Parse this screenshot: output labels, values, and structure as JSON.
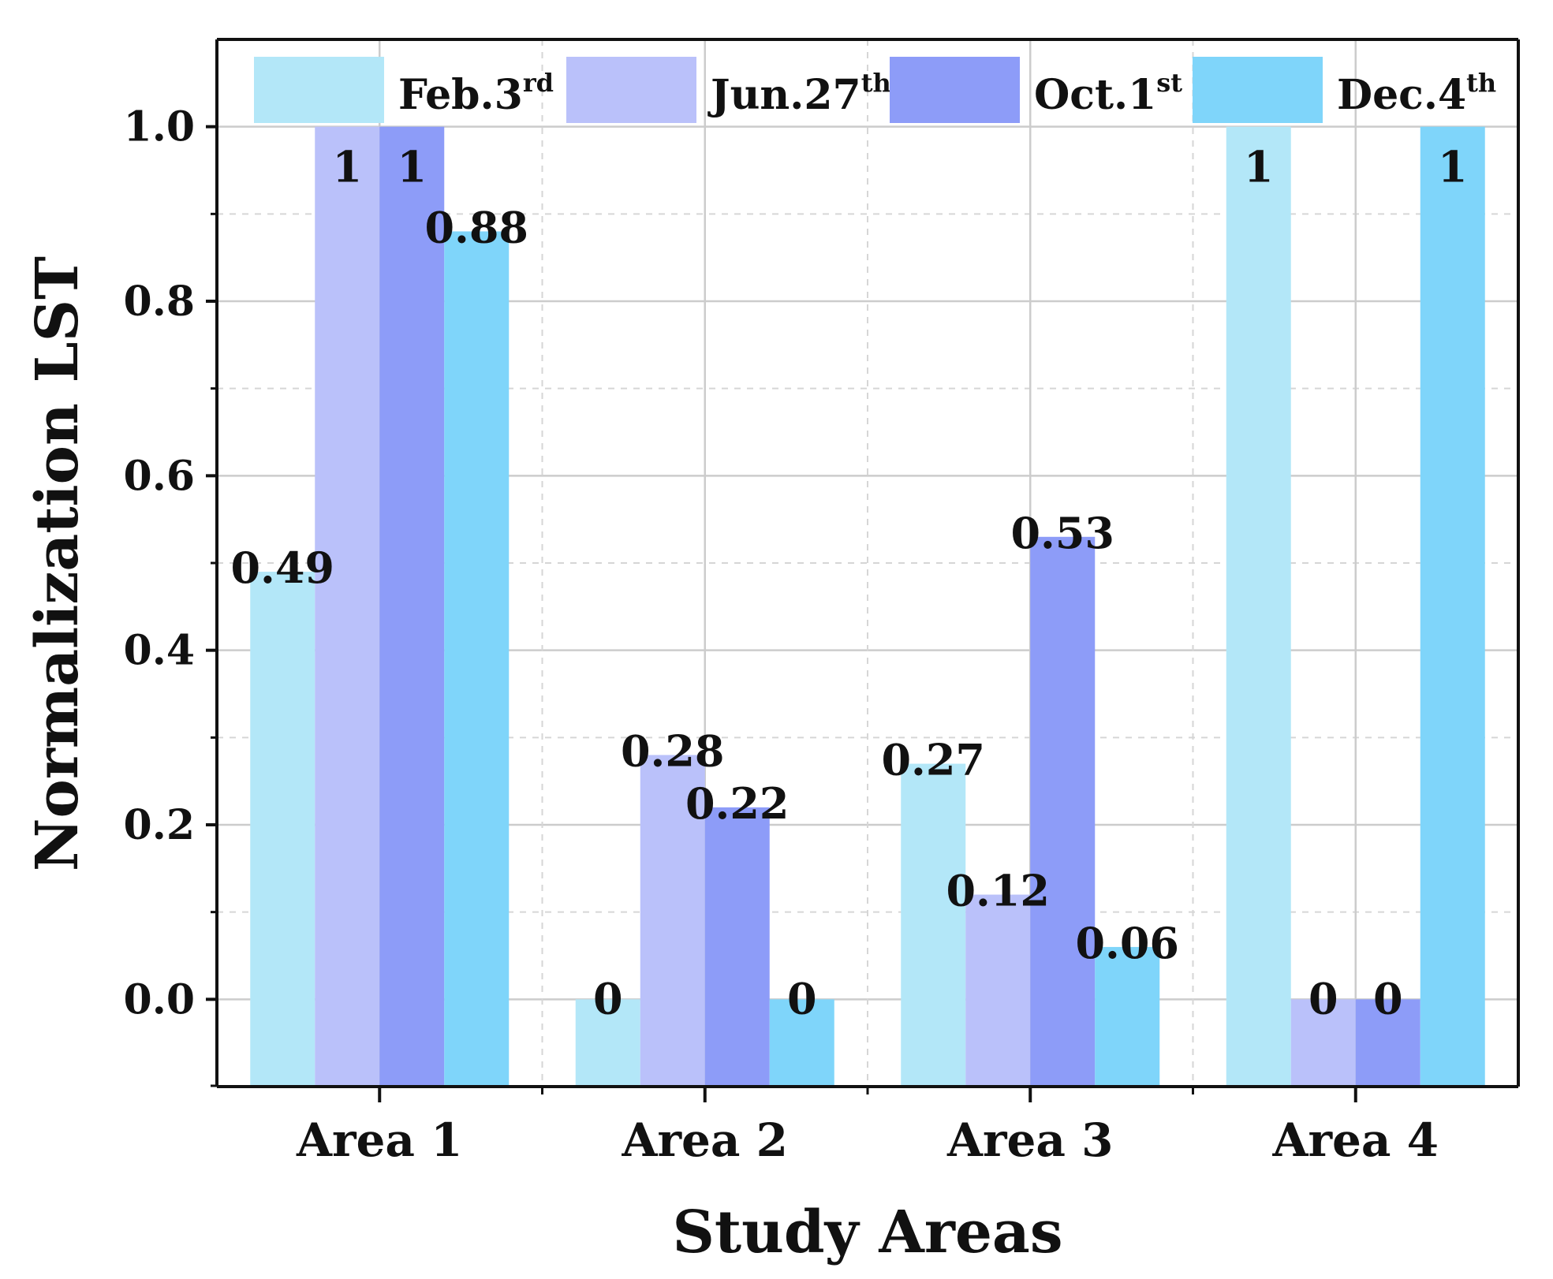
{
  "chart_data": {
    "type": "bar",
    "title": "",
    "xlabel": "Study Areas",
    "ylabel": "Normalization LST",
    "ylim": [
      -0.1,
      1.1
    ],
    "yticks": [
      "0.0",
      "0.2",
      "0.4",
      "0.6",
      "0.8",
      "1.0"
    ],
    "grid": true,
    "legend_position": "top",
    "categories": [
      "Area 1",
      "Area 2",
      "Area 3",
      "Area 4"
    ],
    "series": [
      {
        "name": "Feb.3rd",
        "label_main": "Feb.3",
        "label_sup": "rd",
        "color": "#b3e7f8",
        "values": [
          0.49,
          0,
          0.27,
          1
        ],
        "data_labels": [
          "0.49",
          "0",
          "0.27",
          "1"
        ]
      },
      {
        "name": "Jun.27th",
        "label_main": "Jun.27",
        "label_sup": "th",
        "color": "#bac1fa",
        "values": [
          1,
          0.28,
          0.12,
          0
        ],
        "data_labels": [
          "1",
          "0.28",
          "0.12",
          "0"
        ]
      },
      {
        "name": "Oct.1st",
        "label_main": "Oct.1",
        "label_sup": "st",
        "color": "#8d9cf8",
        "values": [
          1,
          0.22,
          0.53,
          0
        ],
        "data_labels": [
          "1",
          "0.22",
          "0.53",
          "0"
        ]
      },
      {
        "name": "Dec.4th",
        "label_main": "Dec.4",
        "label_sup": "th",
        "color": "#7fd5fa",
        "values": [
          0.88,
          0,
          0.06,
          1
        ],
        "data_labels": [
          "0.88",
          "0",
          "0.06",
          "1"
        ]
      }
    ]
  }
}
